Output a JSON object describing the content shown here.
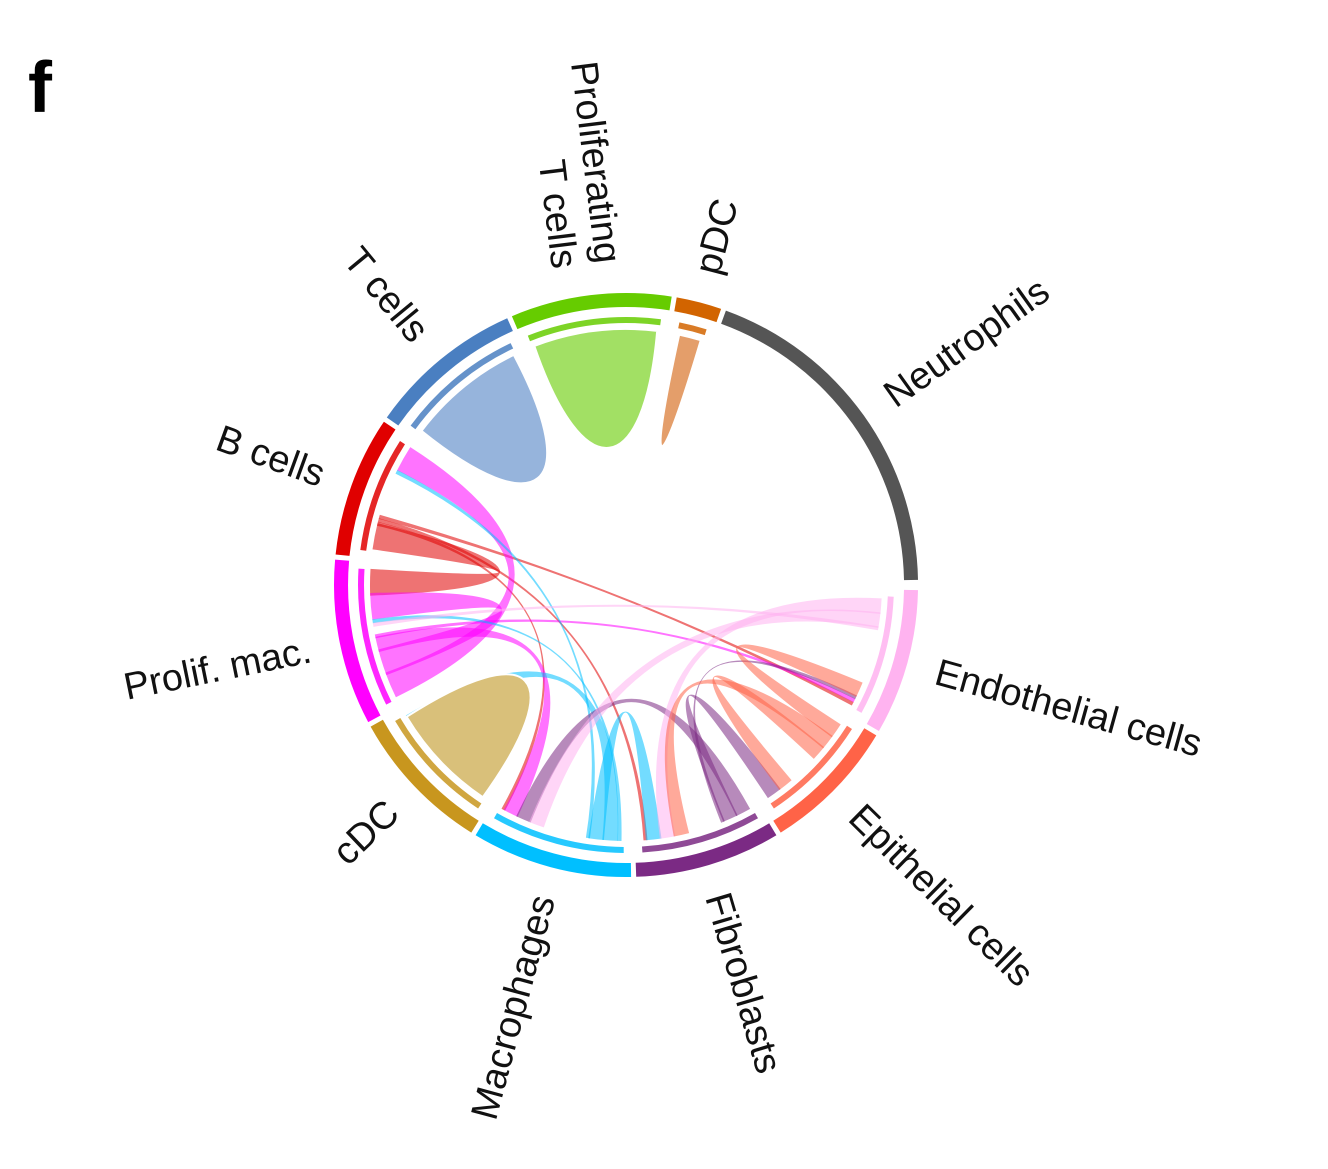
{
  "panel_letter": "f",
  "chart_data": {
    "type": "chord",
    "sectors": [
      {
        "id": "neutrophils",
        "name": "Neutrophils",
        "color": "#555555",
        "label_lines": [
          "Neutrophils"
        ]
      },
      {
        "id": "endothelial",
        "name": "Endothelial cells",
        "color": "#ffb3f0",
        "label_lines": [
          "Endothelial cells"
        ]
      },
      {
        "id": "epithelial",
        "name": "Epithelial cells",
        "color": "#ff6347",
        "label_lines": [
          "Epithelial cells"
        ]
      },
      {
        "id": "fibroblasts",
        "name": "Fibroblasts",
        "color": "#7b2a84",
        "label_lines": [
          "Fibroblasts"
        ]
      },
      {
        "id": "macrophages",
        "name": "Macrophages",
        "color": "#00bfff",
        "label_lines": [
          "Macrophages"
        ]
      },
      {
        "id": "cdc",
        "name": "cDC",
        "color": "#c8961e",
        "label_lines": [
          "cDC"
        ]
      },
      {
        "id": "prolif_mac",
        "name": "Prolif. mac.",
        "color": "#ff00ff",
        "label_lines": [
          "Prolif. mac."
        ]
      },
      {
        "id": "b_cells",
        "name": "B cells",
        "color": "#e00000",
        "label_lines": [
          "B cells"
        ]
      },
      {
        "id": "t_cells",
        "name": "T cells",
        "color": "#4a7fc1",
        "label_lines": [
          "T cells"
        ]
      },
      {
        "id": "prolif_t",
        "name": "Proliferating T cells",
        "color": "#66cc00",
        "label_lines": [
          "Proliferating",
          "T cells"
        ]
      },
      {
        "id": "pdc",
        "name": "pDC",
        "color": "#d26400",
        "label_lines": [
          "pDC"
        ]
      }
    ],
    "self_links": [
      {
        "sector": "t_cells",
        "color": "#96b4dc"
      },
      {
        "sector": "prolif_t",
        "color": "#a2e064"
      },
      {
        "sector": "pdc",
        "color": "#e49e6a"
      },
      {
        "sector": "cdc",
        "color": "#d9c07a"
      }
    ],
    "links": [
      {
        "from": "b_cells",
        "to": "prolif_mac",
        "color": "#e00000",
        "weight": "high"
      },
      {
        "from": "b_cells",
        "to": "macrophages",
        "color": "#e00000",
        "weight": "low"
      },
      {
        "from": "b_cells",
        "to": "fibroblasts",
        "color": "#e00000",
        "weight": "low"
      },
      {
        "from": "b_cells",
        "to": "endothelial",
        "color": "#e00000",
        "weight": "low"
      },
      {
        "from": "prolif_mac",
        "to": "b_cells",
        "color": "#ff00ff",
        "weight": "high"
      },
      {
        "from": "prolif_mac",
        "to": "prolif_mac",
        "color": "#ff00ff",
        "weight": "high"
      },
      {
        "from": "prolif_mac",
        "to": "macrophages",
        "color": "#ff00ff",
        "weight": "medium"
      },
      {
        "from": "prolif_mac",
        "to": "endothelial",
        "color": "#ff00ff",
        "weight": "low"
      },
      {
        "from": "macrophages",
        "to": "prolif_mac",
        "color": "#00bfff",
        "weight": "low"
      },
      {
        "from": "macrophages",
        "to": "cdc",
        "color": "#00bfff",
        "weight": "medium"
      },
      {
        "from": "macrophages",
        "to": "fibroblasts",
        "color": "#00bfff",
        "weight": "medium"
      },
      {
        "from": "macrophages",
        "to": "b_cells",
        "color": "#00bfff",
        "weight": "low"
      },
      {
        "from": "fibroblasts",
        "to": "macrophages",
        "color": "#7b2a84",
        "weight": "medium"
      },
      {
        "from": "fibroblasts",
        "to": "epithelial",
        "color": "#7b2a84",
        "weight": "medium"
      },
      {
        "from": "fibroblasts",
        "to": "endothelial",
        "color": "#7b2a84",
        "weight": "low"
      },
      {
        "from": "endothelial",
        "to": "fibroblasts",
        "color": "#ffb3f0",
        "weight": "medium"
      },
      {
        "from": "endothelial",
        "to": "macrophages",
        "color": "#ffb3f0",
        "weight": "medium"
      },
      {
        "from": "endothelial",
        "to": "prolif_mac",
        "color": "#ffb3f0",
        "weight": "low"
      },
      {
        "from": "epithelial",
        "to": "endothelial",
        "color": "#ff6347",
        "weight": "medium"
      },
      {
        "from": "epithelial",
        "to": "fibroblasts",
        "color": "#ff6347",
        "weight": "medium"
      },
      {
        "from": "epithelial",
        "to": "epithelial",
        "color": "#ff6347",
        "weight": "medium"
      }
    ]
  }
}
